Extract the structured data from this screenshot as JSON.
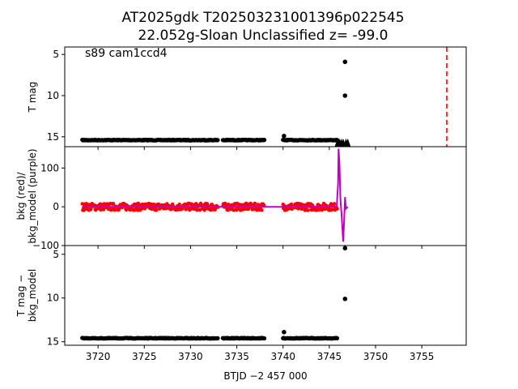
{
  "title_line1": "AT2025gdk  T202503231001396p022545",
  "title_line2": "22.052g-Sloan Unclassified z= -99.0",
  "annotation": "s89 cam1ccd4",
  "xlabel": "BTJD −2 457 000",
  "colors": {
    "points": "#000000",
    "background_red": "#ff0000",
    "model_purple": "#c000c0",
    "marker_line": "#ff0000"
  },
  "chart_data": [
    {
      "type": "scatter",
      "panel": "top",
      "ylabel": "T mag",
      "y_inverted": true,
      "ylim": [
        16.2,
        4.1
      ],
      "yticks": [
        5,
        10,
        15
      ],
      "xlim": [
        3716.4,
        3759.8
      ],
      "xticks": [
        3720,
        3725,
        3730,
        3735,
        3740,
        3745,
        3750,
        3755
      ],
      "segments": [
        {
          "x_start": 3718.3,
          "x_end": 3733.0,
          "y": 15.4
        },
        {
          "x_start": 3733.5,
          "x_end": 3738.0,
          "y": 15.4
        },
        {
          "x_start": 3740.0,
          "x_end": 3745.9,
          "y": 15.4
        }
      ],
      "points": [
        {
          "x": 3740.1,
          "y": 14.9
        },
        {
          "x": 3746.7,
          "y": 5.9
        },
        {
          "x": 3746.7,
          "y": 10.0
        }
      ],
      "upper_limits_x": [
        3745.9,
        3746.1,
        3746.3,
        3746.5,
        3746.8,
        3747.0
      ],
      "vline_x": 3757.7
    },
    {
      "type": "line",
      "panel": "middle",
      "ylabel": "bkg (red)/\nbkg_model (purple)",
      "ylim": [
        -100,
        155
      ],
      "yticks": [
        -100,
        0,
        100
      ],
      "series": [
        {
          "name": "bkg",
          "color": "red",
          "level": 0,
          "noise": 9
        },
        {
          "name": "bkg_model",
          "color": "purple",
          "spike_x": [
            3745.8,
            3745.95,
            3746.0,
            3746.1,
            3746.2,
            3746.35,
            3746.5,
            3746.6,
            3746.7,
            3746.8,
            3747.0
          ],
          "spike_y": [
            0,
            60,
            150,
            110,
            20,
            -30,
            -90,
            -40,
            25,
            -5,
            0
          ]
        }
      ]
    },
    {
      "type": "scatter",
      "panel": "bottom",
      "ylabel": "T mag −\nbkg_model",
      "y_inverted": true,
      "ylim": [
        15.4,
        4.0
      ],
      "yticks": [
        5,
        10,
        15
      ],
      "segments": [
        {
          "x_start": 3718.3,
          "x_end": 3733.0,
          "y": 14.6
        },
        {
          "x_start": 3733.5,
          "x_end": 3738.0,
          "y": 14.6
        },
        {
          "x_start": 3740.0,
          "x_end": 3745.9,
          "y": 14.6
        }
      ],
      "points": [
        {
          "x": 3740.1,
          "y": 13.9
        },
        {
          "x": 3746.7,
          "y": 4.3
        },
        {
          "x": 3746.7,
          "y": 10.1
        }
      ]
    }
  ]
}
